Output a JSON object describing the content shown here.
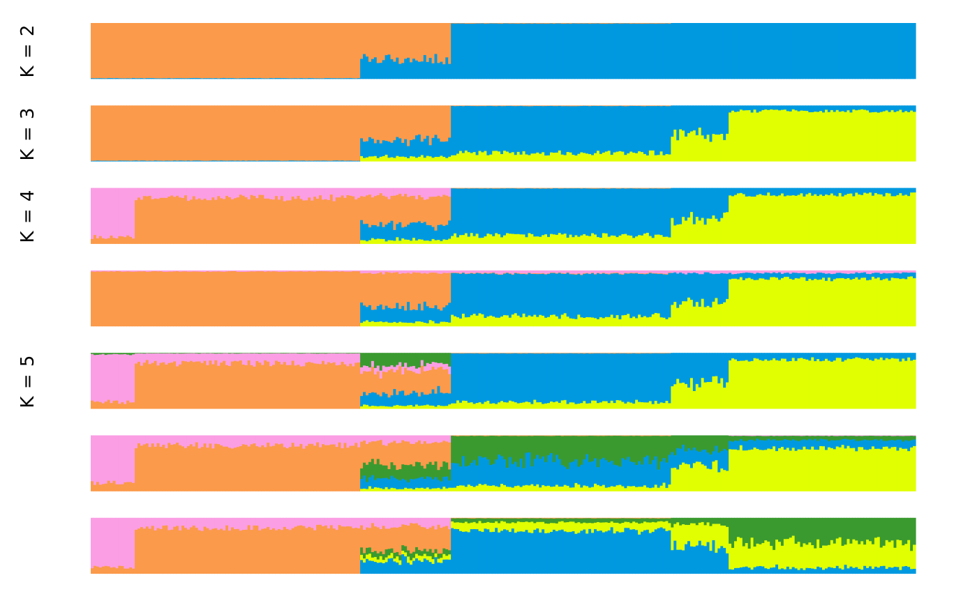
{
  "colors": {
    "orange": "#fb9a4a",
    "blue": "#0099e0",
    "yellow": "#e1ff00",
    "pink": "#fb9ee4",
    "green": "#3a9a30"
  },
  "chart_data": {
    "type": "bar",
    "title": "",
    "xlabel": "",
    "ylabel": "",
    "ylim": [
      0,
      1
    ],
    "grid": false,
    "legend": "none",
    "n_individuals": 300,
    "group_boundaries": [
      16,
      98,
      131,
      211,
      232
    ],
    "panels": [
      {
        "k_label": "K = 2",
        "components": [
          {
            "color": "orange",
            "mean_by_group": [
              0.99,
              0.99,
              0.65,
              0.01,
              0.0,
              0.0
            ]
          },
          {
            "color": "blue",
            "mean_by_group": [
              0.01,
              0.01,
              0.35,
              0.99,
              1.0,
              1.0
            ]
          }
        ]
      },
      {
        "k_label": "K = 3",
        "components": [
          {
            "color": "orange",
            "mean_by_group": [
              0.99,
              0.99,
              0.62,
              0.01,
              0.0,
              0.0
            ]
          },
          {
            "color": "blue",
            "mean_by_group": [
              0.01,
              0.01,
              0.3,
              0.84,
              0.55,
              0.1
            ]
          },
          {
            "color": "yellow",
            "mean_by_group": [
              0.0,
              0.0,
              0.08,
              0.15,
              0.45,
              0.9
            ]
          }
        ]
      },
      {
        "k_label": "K = 4",
        "components": [
          {
            "color": "pink",
            "mean_by_group": [
              0.88,
              0.18,
              0.15,
              0.0,
              0.0,
              0.0
            ]
          },
          {
            "color": "orange",
            "mean_by_group": [
              0.12,
              0.82,
              0.5,
              0.01,
              0.0,
              0.0
            ]
          },
          {
            "color": "blue",
            "mean_by_group": [
              0.0,
              0.0,
              0.28,
              0.84,
              0.55,
              0.12
            ]
          },
          {
            "color": "yellow",
            "mean_by_group": [
              0.0,
              0.0,
              0.07,
              0.15,
              0.45,
              0.88
            ]
          }
        ]
      },
      {
        "k_label": "",
        "components": [
          {
            "color": "pink",
            "mean_by_group": [
              0.02,
              0.02,
              0.05,
              0.05,
              0.05,
              0.05
            ]
          },
          {
            "color": "orange",
            "mean_by_group": [
              0.98,
              0.98,
              0.6,
              0.01,
              0.0,
              0.0
            ]
          },
          {
            "color": "blue",
            "mean_by_group": [
              0.0,
              0.0,
              0.28,
              0.76,
              0.55,
              0.1
            ]
          },
          {
            "color": "yellow",
            "mean_by_group": [
              0.0,
              0.0,
              0.07,
              0.18,
              0.4,
              0.85
            ]
          }
        ]
      },
      {
        "k_label": "K = 5",
        "components": [
          {
            "color": "green",
            "mean_by_group": [
              0.03,
              0.01,
              0.22,
              0.0,
              0.0,
              0.0
            ]
          },
          {
            "color": "pink",
            "mean_by_group": [
              0.85,
              0.18,
              0.1,
              0.0,
              0.0,
              0.0
            ]
          },
          {
            "color": "orange",
            "mean_by_group": [
              0.12,
              0.81,
              0.4,
              0.01,
              0.0,
              0.0
            ]
          },
          {
            "color": "blue",
            "mean_by_group": [
              0.0,
              0.0,
              0.23,
              0.87,
              0.55,
              0.12
            ]
          },
          {
            "color": "yellow",
            "mean_by_group": [
              0.0,
              0.0,
              0.05,
              0.12,
              0.45,
              0.88
            ]
          }
        ]
      },
      {
        "k_label": "",
        "components": [
          {
            "color": "pink",
            "mean_by_group": [
              0.85,
              0.18,
              0.12,
              0.0,
              0.0,
              0.01
            ]
          },
          {
            "color": "orange",
            "mean_by_group": [
              0.15,
              0.82,
              0.4,
              0.01,
              0.0,
              0.0
            ]
          },
          {
            "color": "green",
            "mean_by_group": [
              0.0,
              0.0,
              0.25,
              0.45,
              0.25,
              0.08
            ]
          },
          {
            "color": "blue",
            "mean_by_group": [
              0.0,
              0.0,
              0.18,
              0.45,
              0.28,
              0.15
            ]
          },
          {
            "color": "yellow",
            "mean_by_group": [
              0.0,
              0.0,
              0.05,
              0.09,
              0.47,
              0.76
            ]
          }
        ]
      },
      {
        "k_label": "",
        "components": [
          {
            "color": "pink",
            "mean_by_group": [
              0.88,
              0.18,
              0.15,
              0.0,
              0.0,
              0.0
            ]
          },
          {
            "color": "orange",
            "mean_by_group": [
              0.12,
              0.82,
              0.45,
              0.01,
              0.0,
              0.0
            ]
          },
          {
            "color": "green",
            "mean_by_group": [
              0.0,
              0.0,
              0.1,
              0.07,
              0.12,
              0.45
            ]
          },
          {
            "color": "yellow",
            "mean_by_group": [
              0.0,
              0.0,
              0.08,
              0.15,
              0.4,
              0.45
            ]
          },
          {
            "color": "blue",
            "mean_by_group": [
              0.0,
              0.0,
              0.22,
              0.77,
              0.48,
              0.1
            ]
          }
        ]
      }
    ]
  }
}
